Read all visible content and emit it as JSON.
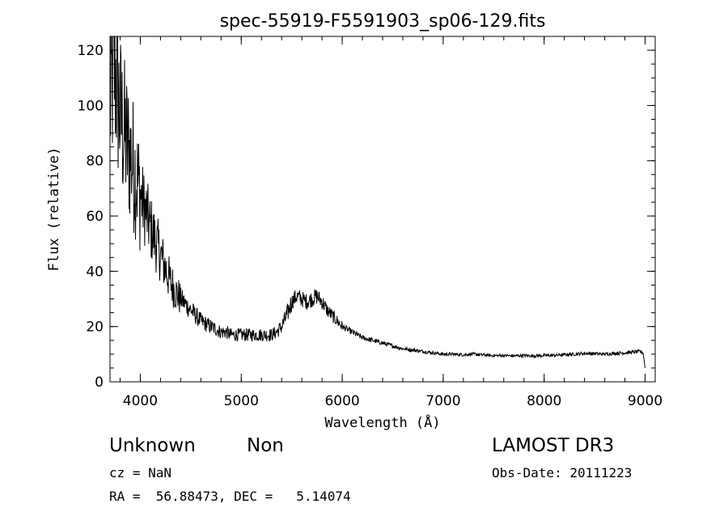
{
  "chart_data": {
    "type": "line",
    "title": "spec-55919-F5591903_sp06-129.fits",
    "xlabel": "Wavelength (Å)",
    "ylabel": "Flux (relative)",
    "xlim": [
      3700,
      9100
    ],
    "ylim": [
      0,
      125
    ],
    "xticks": [
      4000,
      5000,
      6000,
      7000,
      8000,
      9000
    ],
    "yticks": [
      0,
      20,
      40,
      60,
      80,
      100,
      120
    ],
    "x_minor_step": 200,
    "y_minor_step": 5,
    "series": [
      {
        "name": "spectrum",
        "x": [
          3700,
          3720,
          3740,
          3760,
          3780,
          3800,
          3820,
          3840,
          3860,
          3880,
          3900,
          3920,
          3940,
          3960,
          3980,
          4000,
          4030,
          4060,
          4090,
          4120,
          4150,
          4180,
          4210,
          4240,
          4270,
          4300,
          4330,
          4360,
          4400,
          4450,
          4500,
          4550,
          4600,
          4650,
          4700,
          4750,
          4800,
          4850,
          4900,
          4950,
          5000,
          5050,
          5100,
          5150,
          5200,
          5250,
          5300,
          5350,
          5400,
          5450,
          5500,
          5550,
          5600,
          5650,
          5700,
          5750,
          5800,
          5850,
          5900,
          5950,
          6000,
          6100,
          6200,
          6300,
          6400,
          6500,
          6600,
          6700,
          6800,
          6900,
          7000,
          7100,
          7200,
          7300,
          7400,
          7500,
          7600,
          7700,
          7800,
          7900,
          8000,
          8100,
          8200,
          8300,
          8400,
          8500,
          8600,
          8700,
          8800,
          8900,
          8950,
          8980,
          9000
        ],
        "values": [
          100,
          108,
          115,
          110,
          103,
          97,
          93,
          90,
          87,
          84,
          82,
          80,
          77,
          74,
          71,
          68,
          64,
          61,
          57,
          54,
          51,
          48,
          45,
          42,
          39,
          36,
          34,
          32,
          30,
          28,
          26,
          24,
          22,
          21,
          20,
          19,
          18,
          18,
          17,
          17,
          17,
          17,
          17,
          17,
          17,
          17,
          17,
          18,
          20,
          24,
          29,
          31,
          30,
          29,
          30,
          31,
          29,
          26,
          24,
          22,
          20,
          18,
          16,
          15,
          14,
          13,
          12,
          11.5,
          11,
          10.5,
          10,
          10,
          9.8,
          10,
          9.7,
          9.5,
          9.5,
          9.4,
          9.5,
          9.4,
          9.5,
          9.6,
          9.8,
          10,
          10.3,
          10.2,
          10,
          10.3,
          10.5,
          10.8,
          11,
          10.5,
          5
        ]
      }
    ]
  },
  "annotations": {
    "object_class": "Unknown",
    "subclass": "Non",
    "survey": "LAMOST DR3",
    "redshift_line": "cz = NaN",
    "coord_line": "RA =  56.88473, DEC =   5.14074",
    "obs_date_line": "Obs-Date: 20111223"
  }
}
